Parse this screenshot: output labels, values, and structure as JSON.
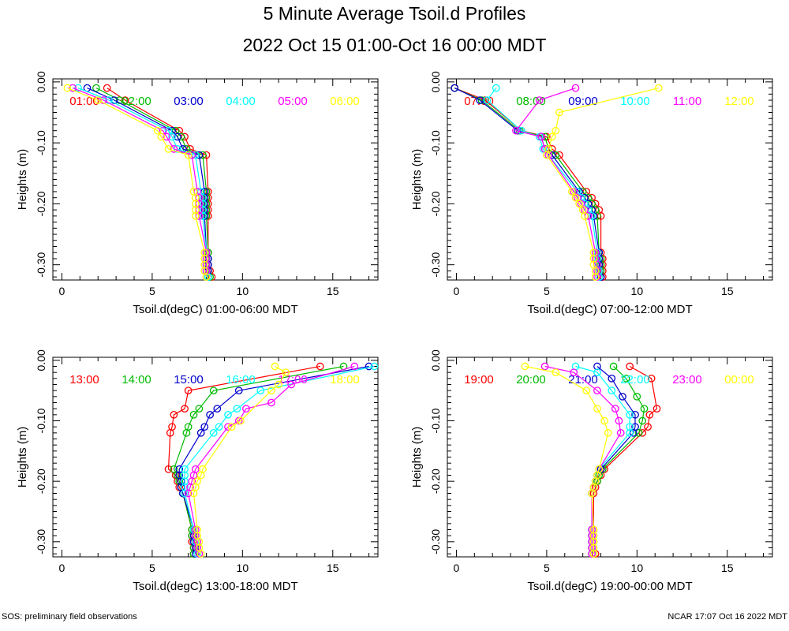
{
  "page": {
    "title": "5 Minute Average Tsoil.d Profiles",
    "subtitle": "2022 Oct 15 01:00-Oct 16 00:00 MDT",
    "footer_left": "SOS: preliminary field observations",
    "footer_right": "NCAR 17:07 Oct 16 2022 MDT"
  },
  "colors": {
    "red": "#ff0000",
    "green": "#00bb00",
    "blue": "#0000cc",
    "cyan": "#00ffff",
    "magenta": "#ff00ff",
    "yellow": "#ffff00"
  },
  "chart_data": [
    {
      "type": "line",
      "xlabel": "Tsoil.d(degC) 01:00-06:00 MDT",
      "ylabel": "Heights (m)",
      "xlim": [
        -0.5,
        17.5
      ],
      "ylim": [
        -0.325,
        0.005
      ],
      "xticks": [
        "0",
        "5",
        "10",
        "15"
      ],
      "yticks": [
        "0.00",
        "-0.10",
        "-0.20",
        "-0.30"
      ],
      "series": [
        {
          "name": "01:00",
          "color": "red",
          "x": [
            2.5,
            3.5,
            6.5,
            6.8,
            7.1,
            8.0,
            8.1,
            8.1,
            8.1,
            8.1,
            8.1,
            8.1,
            8.1,
            8.1,
            8.2,
            8.3
          ],
          "y": [
            -0.01,
            -0.03,
            -0.08,
            -0.09,
            -0.11,
            -0.12,
            -0.18,
            -0.19,
            -0.2,
            -0.21,
            -0.22,
            -0.28,
            -0.29,
            -0.3,
            -0.31,
            -0.32
          ]
        },
        {
          "name": "02:00",
          "color": "green",
          "x": [
            1.9,
            3.2,
            6.3,
            6.6,
            6.9,
            7.8,
            8.0,
            8.0,
            8.0,
            8.0,
            8.0,
            8.1,
            8.1,
            8.1,
            8.1,
            8.2
          ],
          "y": [
            -0.01,
            -0.03,
            -0.08,
            -0.09,
            -0.11,
            -0.12,
            -0.18,
            -0.19,
            -0.2,
            -0.21,
            -0.22,
            -0.28,
            -0.29,
            -0.3,
            -0.31,
            -0.32
          ]
        },
        {
          "name": "03:00",
          "color": "blue",
          "x": [
            1.4,
            2.9,
            6.1,
            6.4,
            6.7,
            7.6,
            7.9,
            7.9,
            7.9,
            7.9,
            7.9,
            8.0,
            8.1,
            8.1,
            8.1,
            8.1
          ],
          "y": [
            -0.01,
            -0.03,
            -0.08,
            -0.09,
            -0.11,
            -0.12,
            -0.18,
            -0.19,
            -0.2,
            -0.21,
            -0.22,
            -0.28,
            -0.29,
            -0.3,
            -0.31,
            -0.32
          ]
        },
        {
          "name": "04:00",
          "color": "cyan",
          "x": [
            0.9,
            2.6,
            5.9,
            6.1,
            6.4,
            7.4,
            7.7,
            7.8,
            7.8,
            7.8,
            7.8,
            8.0,
            8.0,
            8.0,
            8.0,
            8.1
          ],
          "y": [
            -0.01,
            -0.03,
            -0.08,
            -0.09,
            -0.11,
            -0.12,
            -0.18,
            -0.19,
            -0.2,
            -0.21,
            -0.22,
            -0.28,
            -0.29,
            -0.3,
            -0.31,
            -0.32
          ]
        },
        {
          "name": "05:00",
          "color": "magenta",
          "x": [
            0.6,
            2.3,
            5.6,
            5.8,
            6.2,
            7.2,
            7.5,
            7.6,
            7.6,
            7.6,
            7.6,
            8.0,
            8.0,
            8.0,
            8.0,
            8.0
          ],
          "y": [
            -0.01,
            -0.03,
            -0.08,
            -0.09,
            -0.11,
            -0.12,
            -0.18,
            -0.19,
            -0.2,
            -0.21,
            -0.22,
            -0.28,
            -0.29,
            -0.3,
            -0.31,
            -0.32
          ]
        },
        {
          "name": "06:00",
          "color": "yellow",
          "x": [
            0.3,
            2.0,
            5.3,
            5.5,
            5.9,
            7.0,
            7.3,
            7.4,
            7.4,
            7.4,
            7.4,
            7.9,
            7.9,
            7.9,
            7.9,
            8.0
          ],
          "y": [
            -0.01,
            -0.03,
            -0.08,
            -0.09,
            -0.11,
            -0.12,
            -0.18,
            -0.19,
            -0.2,
            -0.21,
            -0.22,
            -0.28,
            -0.29,
            -0.3,
            -0.31,
            -0.32
          ]
        }
      ]
    },
    {
      "type": "line",
      "xlabel": "Tsoil.d(degC) 07:00-12:00 MDT",
      "ylabel": "Heights (m)",
      "xlim": [
        -0.5,
        17.5
      ],
      "ylim": [
        -0.325,
        0.005
      ],
      "xticks": [
        "0",
        "5",
        "10",
        "15"
      ],
      "yticks": [
        "0.00",
        "-0.10",
        "-0.20",
        "-0.30"
      ],
      "series": [
        {
          "name": "07:00",
          "color": "red",
          "x": [
            -0.1,
            1.6,
            3.6,
            5.0,
            5.3,
            5.7,
            7.2,
            7.5,
            7.7,
            7.9,
            8.0,
            8.0,
            8.1,
            8.1,
            8.1,
            8.1
          ],
          "y": [
            -0.01,
            -0.03,
            -0.08,
            -0.09,
            -0.11,
            -0.12,
            -0.18,
            -0.19,
            -0.2,
            -0.21,
            -0.22,
            -0.28,
            -0.29,
            -0.3,
            -0.31,
            -0.32
          ]
        },
        {
          "name": "08:00",
          "color": "green",
          "x": [
            -0.1,
            1.4,
            3.5,
            4.9,
            5.1,
            5.5,
            7.0,
            7.3,
            7.5,
            7.7,
            7.8,
            7.9,
            8.0,
            8.0,
            8.0,
            8.0
          ],
          "y": [
            -0.01,
            -0.03,
            -0.08,
            -0.09,
            -0.11,
            -0.12,
            -0.18,
            -0.19,
            -0.2,
            -0.21,
            -0.22,
            -0.28,
            -0.29,
            -0.3,
            -0.31,
            -0.32
          ]
        },
        {
          "name": "09:00",
          "color": "blue",
          "x": [
            -0.1,
            1.3,
            3.4,
            4.7,
            4.9,
            5.3,
            6.8,
            7.1,
            7.3,
            7.5,
            7.6,
            7.9,
            7.9,
            7.9,
            7.9,
            8.0
          ],
          "y": [
            -0.01,
            -0.03,
            -0.08,
            -0.09,
            -0.11,
            -0.12,
            -0.18,
            -0.19,
            -0.2,
            -0.21,
            -0.22,
            -0.28,
            -0.29,
            -0.3,
            -0.31,
            -0.32
          ]
        },
        {
          "name": "10:00",
          "color": "cyan",
          "x": [
            2.2,
            1.7,
            3.6,
            4.6,
            4.8,
            5.1,
            6.7,
            6.9,
            7.1,
            7.3,
            7.5,
            7.8,
            7.8,
            7.8,
            7.9,
            7.9
          ],
          "y": [
            -0.01,
            -0.03,
            -0.08,
            -0.09,
            -0.11,
            -0.12,
            -0.18,
            -0.19,
            -0.2,
            -0.21,
            -0.22,
            -0.28,
            -0.29,
            -0.3,
            -0.31,
            -0.32
          ]
        },
        {
          "name": "11:00",
          "color": "magenta",
          "x": [
            6.6,
            4.6,
            3.3,
            4.7,
            4.9,
            5.1,
            6.5,
            6.7,
            6.9,
            7.1,
            7.3,
            7.7,
            7.7,
            7.8,
            7.8,
            7.8
          ],
          "y": [
            -0.01,
            -0.03,
            -0.08,
            -0.09,
            -0.11,
            -0.12,
            -0.18,
            -0.19,
            -0.2,
            -0.21,
            -0.22,
            -0.28,
            -0.29,
            -0.3,
            -0.31,
            -0.32
          ]
        },
        {
          "name": "12:00",
          "color": "yellow",
          "x": [
            11.2,
            5.7,
            5.5,
            5.3,
            5.1,
            5.0,
            6.4,
            6.6,
            6.8,
            7.0,
            7.1,
            7.6,
            7.6,
            7.6,
            7.7,
            7.7
          ],
          "y": [
            -0.01,
            -0.05,
            -0.08,
            -0.09,
            -0.11,
            -0.12,
            -0.18,
            -0.19,
            -0.2,
            -0.21,
            -0.22,
            -0.28,
            -0.29,
            -0.3,
            -0.31,
            -0.32
          ]
        }
      ]
    },
    {
      "type": "line",
      "xlabel": "Tsoil.d(degC) 13:00-18:00 MDT",
      "ylabel": "Heights (m)",
      "xlim": [
        -0.5,
        17.5
      ],
      "ylim": [
        -0.325,
        0.005
      ],
      "xticks": [
        "0",
        "5",
        "10",
        "15"
      ],
      "yticks": [
        "0.00",
        "-0.10",
        "-0.20",
        "-0.30"
      ],
      "series": [
        {
          "name": "13:00",
          "color": "red",
          "x": [
            14.3,
            7.0,
            6.8,
            6.2,
            6.1,
            6.0,
            5.9,
            6.3,
            6.4,
            6.5,
            6.7,
            7.2,
            7.2,
            7.2,
            7.3,
            7.3
          ],
          "y": [
            -0.01,
            -0.05,
            -0.08,
            -0.09,
            -0.11,
            -0.12,
            -0.18,
            -0.19,
            -0.2,
            -0.21,
            -0.22,
            -0.28,
            -0.29,
            -0.3,
            -0.31,
            -0.32
          ]
        },
        {
          "name": "14:00",
          "color": "green",
          "x": [
            15.6,
            8.4,
            7.6,
            7.3,
            7.0,
            6.9,
            6.2,
            6.4,
            6.5,
            6.6,
            6.7,
            7.2,
            7.2,
            7.3,
            7.3,
            7.3
          ],
          "y": [
            -0.01,
            -0.05,
            -0.08,
            -0.09,
            -0.11,
            -0.12,
            -0.18,
            -0.19,
            -0.2,
            -0.21,
            -0.22,
            -0.28,
            -0.29,
            -0.3,
            -0.31,
            -0.32
          ]
        },
        {
          "name": "15:00",
          "color": "blue",
          "x": [
            17.0,
            9.8,
            8.6,
            8.2,
            7.9,
            7.7,
            6.5,
            6.5,
            6.6,
            6.6,
            6.7,
            7.3,
            7.3,
            7.3,
            7.4,
            7.4
          ],
          "y": [
            -0.01,
            -0.05,
            -0.08,
            -0.09,
            -0.11,
            -0.12,
            -0.18,
            -0.19,
            -0.2,
            -0.21,
            -0.22,
            -0.28,
            -0.29,
            -0.3,
            -0.31,
            -0.32
          ]
        },
        {
          "name": "16:00",
          "color": "cyan",
          "x": [
            17.3,
            11.0,
            9.7,
            9.2,
            8.7,
            8.4,
            6.8,
            6.8,
            6.8,
            6.8,
            6.8,
            7.3,
            7.4,
            7.4,
            7.5,
            7.5
          ],
          "y": [
            -0.01,
            -0.05,
            -0.08,
            -0.09,
            -0.11,
            -0.12,
            -0.18,
            -0.19,
            -0.2,
            -0.21,
            -0.22,
            -0.28,
            -0.29,
            -0.3,
            -0.31,
            -0.32
          ]
        },
        {
          "name": "17:00",
          "color": "magenta",
          "x": [
            16.2,
            12.7,
            11.6,
            10.2,
            9.8,
            9.2,
            7.4,
            7.3,
            7.2,
            7.1,
            7.0,
            7.4,
            7.4,
            7.5,
            7.5,
            7.6
          ],
          "y": [
            -0.01,
            -0.04,
            -0.07,
            -0.08,
            -0.1,
            -0.11,
            -0.18,
            -0.19,
            -0.2,
            -0.21,
            -0.22,
            -0.28,
            -0.29,
            -0.3,
            -0.31,
            -0.32
          ]
        },
        {
          "name": "18:00",
          "color": "yellow",
          "x": [
            11.8,
            12.4,
            12.0,
            11.6,
            9.9,
            9.4,
            7.8,
            7.7,
            7.5,
            7.4,
            7.3,
            7.5,
            7.5,
            7.6,
            7.6,
            7.7
          ],
          "y": [
            -0.01,
            -0.02,
            -0.04,
            -0.05,
            -0.1,
            -0.11,
            -0.18,
            -0.19,
            -0.2,
            -0.21,
            -0.22,
            -0.28,
            -0.29,
            -0.3,
            -0.31,
            -0.32
          ]
        }
      ]
    },
    {
      "type": "line",
      "xlabel": "Tsoil.d(degC) 19:00-00:00 MDT",
      "ylabel": "Heights (m)",
      "xlim": [
        -0.5,
        17.5
      ],
      "ylim": [
        -0.325,
        0.005
      ],
      "xticks": [
        "0",
        "5",
        "10",
        "15"
      ],
      "yticks": [
        "0.00",
        "-0.10",
        "-0.20",
        "-0.30"
      ],
      "series": [
        {
          "name": "19:00",
          "color": "red",
          "x": [
            9.6,
            10.8,
            11.1,
            10.7,
            10.6,
            10.3,
            8.2,
            8.0,
            7.8,
            7.7,
            7.6,
            7.6,
            7.6,
            7.6,
            7.6,
            7.7
          ],
          "y": [
            -0.01,
            -0.03,
            -0.08,
            -0.09,
            -0.11,
            -0.12,
            -0.18,
            -0.19,
            -0.2,
            -0.21,
            -0.22,
            -0.28,
            -0.29,
            -0.3,
            -0.31,
            -0.32
          ]
        },
        {
          "name": "20:00",
          "color": "green",
          "x": [
            8.7,
            9.4,
            10.0,
            10.4,
            10.3,
            10.1,
            8.1,
            7.9,
            7.8,
            7.6,
            7.5,
            7.5,
            7.5,
            7.5,
            7.5,
            7.6
          ],
          "y": [
            -0.01,
            -0.03,
            -0.06,
            -0.08,
            -0.1,
            -0.12,
            -0.18,
            -0.19,
            -0.2,
            -0.21,
            -0.22,
            -0.28,
            -0.29,
            -0.3,
            -0.31,
            -0.32
          ]
        },
        {
          "name": "21:00",
          "color": "blue",
          "x": [
            7.8,
            8.6,
            9.2,
            9.9,
            9.9,
            9.8,
            8.0,
            7.8,
            7.7,
            7.6,
            7.5,
            7.5,
            7.5,
            7.5,
            7.5,
            7.5
          ],
          "y": [
            -0.01,
            -0.03,
            -0.06,
            -0.09,
            -0.11,
            -0.12,
            -0.18,
            -0.19,
            -0.2,
            -0.21,
            -0.22,
            -0.28,
            -0.29,
            -0.3,
            -0.31,
            -0.32
          ]
        },
        {
          "name": "22:00",
          "color": "cyan",
          "x": [
            6.6,
            7.8,
            8.6,
            9.6,
            9.6,
            9.6,
            7.9,
            7.8,
            7.7,
            7.6,
            7.5,
            7.5,
            7.5,
            7.5,
            7.5,
            7.5
          ],
          "y": [
            -0.01,
            -0.02,
            -0.05,
            -0.09,
            -0.11,
            -0.12,
            -0.18,
            -0.19,
            -0.2,
            -0.21,
            -0.22,
            -0.28,
            -0.29,
            -0.3,
            -0.31,
            -0.32
          ]
        },
        {
          "name": "23:00",
          "color": "magenta",
          "x": [
            4.9,
            6.5,
            7.8,
            8.8,
            9.0,
            9.1,
            7.9,
            7.8,
            7.7,
            7.6,
            7.5,
            7.5,
            7.5,
            7.5,
            7.5,
            7.5
          ],
          "y": [
            -0.01,
            -0.02,
            -0.05,
            -0.08,
            -0.1,
            -0.12,
            -0.18,
            -0.19,
            -0.2,
            -0.21,
            -0.22,
            -0.28,
            -0.29,
            -0.3,
            -0.31,
            -0.32
          ]
        },
        {
          "name": "00:00",
          "color": "yellow",
          "x": [
            3.8,
            5.5,
            7.2,
            7.8,
            8.2,
            8.4,
            7.9,
            7.8,
            7.7,
            7.6,
            7.5,
            7.6,
            7.6,
            7.6,
            7.6,
            7.6
          ],
          "y": [
            -0.01,
            -0.02,
            -0.05,
            -0.08,
            -0.1,
            -0.12,
            -0.18,
            -0.19,
            -0.2,
            -0.21,
            -0.22,
            -0.28,
            -0.29,
            -0.3,
            -0.31,
            -0.32
          ]
        }
      ]
    }
  ]
}
